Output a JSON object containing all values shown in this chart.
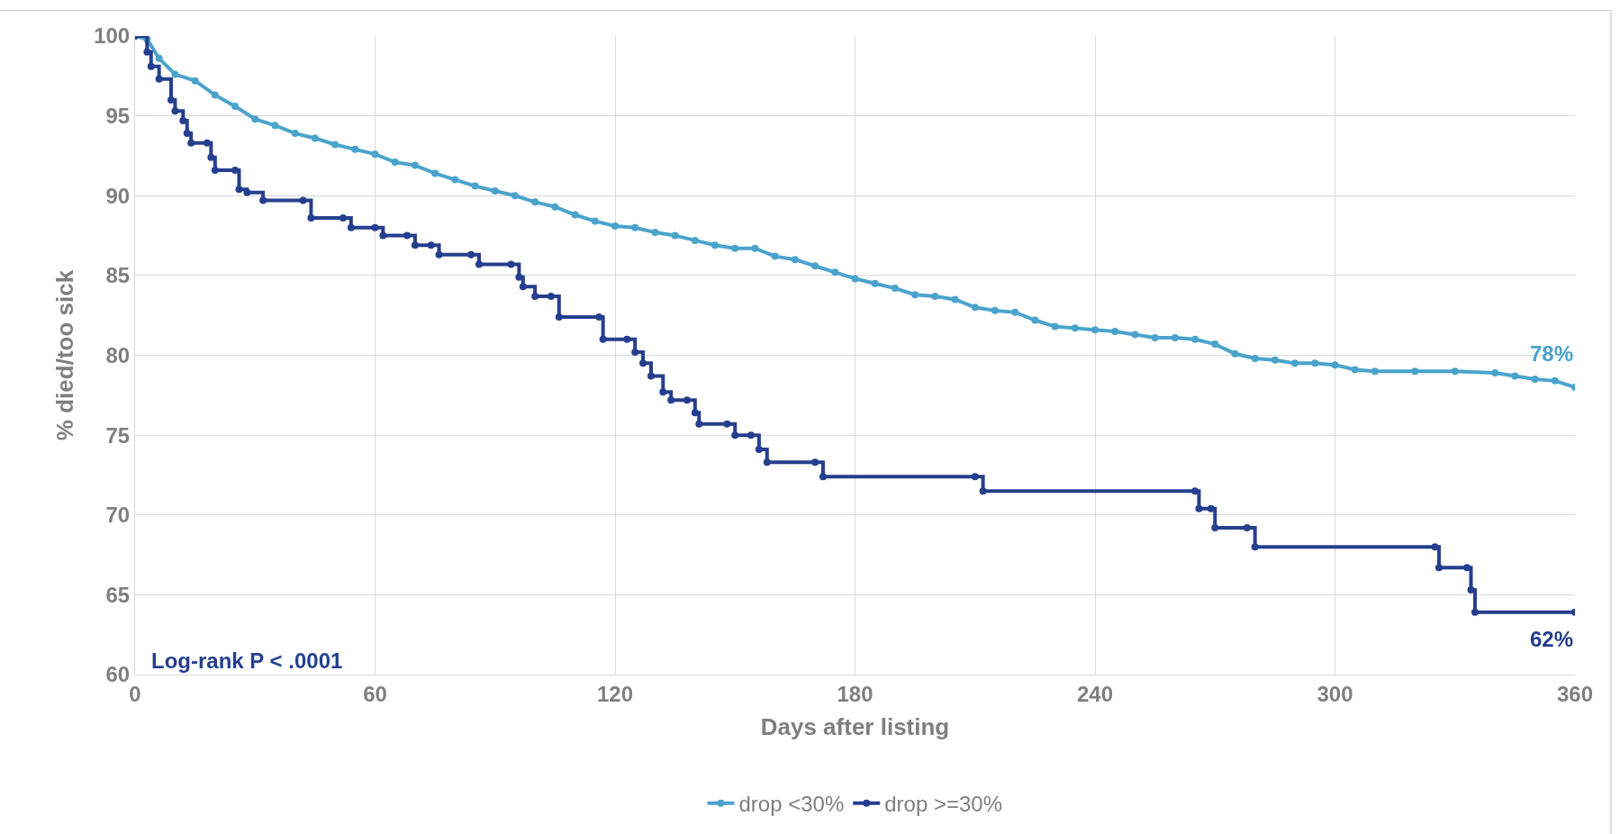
{
  "chart_data": {
    "type": "line",
    "xlabel": "Days after listing",
    "ylabel": "% died/too sick",
    "xlim": [
      0,
      360
    ],
    "xticks": [
      0,
      60,
      120,
      180,
      240,
      300,
      360
    ],
    "ylim": [
      60,
      100
    ],
    "yticks": [
      60,
      65,
      70,
      75,
      80,
      85,
      90,
      95,
      100
    ],
    "grid": true,
    "legend": "bottom",
    "marker": "circle",
    "line_style": "solid",
    "annotations": [
      {
        "text": "78%",
        "x": 360,
        "y": 78.0
      },
      {
        "text": "62%",
        "x": 360,
        "y": 63.9
      },
      "Log-rank P < .0001"
    ],
    "series": [
      {
        "name": "drop <30%",
        "color": "#4ba3cc",
        "x": [
          0,
          3,
          6,
          10,
          15,
          20,
          25,
          30,
          35,
          40,
          45,
          50,
          55,
          60,
          65,
          70,
          75,
          80,
          85,
          90,
          95,
          100,
          105,
          110,
          115,
          120,
          125,
          130,
          135,
          140,
          145,
          150,
          155,
          160,
          165,
          170,
          175,
          180,
          185,
          190,
          195,
          200,
          205,
          210,
          215,
          220,
          225,
          230,
          235,
          240,
          245,
          250,
          255,
          260,
          265,
          270,
          275,
          280,
          285,
          290,
          295,
          300,
          305,
          310,
          320,
          330,
          340,
          345,
          350,
          355,
          360
        ],
        "values": [
          100,
          99.8,
          98.6,
          97.6,
          97.2,
          96.3,
          95.6,
          94.8,
          94.4,
          93.9,
          93.6,
          93.2,
          92.9,
          92.6,
          92.1,
          91.9,
          91.4,
          91.0,
          90.6,
          90.3,
          90.0,
          89.6,
          89.3,
          88.8,
          88.4,
          88.1,
          88.0,
          87.7,
          87.5,
          87.2,
          86.9,
          86.7,
          86.7,
          86.2,
          86.0,
          85.6,
          85.2,
          84.8,
          84.5,
          84.2,
          83.8,
          83.7,
          83.5,
          83.0,
          82.8,
          82.7,
          82.2,
          81.8,
          81.7,
          81.6,
          81.5,
          81.3,
          81.1,
          81.1,
          81.0,
          80.7,
          80.1,
          79.8,
          79.7,
          79.5,
          79.5,
          79.4,
          79.1,
          79.0,
          79.0,
          79.0,
          78.9,
          78.7,
          78.5,
          78.4,
          78.0
        ]
      },
      {
        "name": "drop >=30%",
        "color": "#253f8e",
        "type": "step",
        "x": [
          0,
          3,
          4,
          6,
          9,
          10,
          12,
          13,
          14,
          18,
          19,
          20,
          25,
          26,
          28,
          32,
          42,
          44,
          52,
          54,
          60,
          62,
          68,
          70,
          74,
          76,
          84,
          86,
          94,
          96,
          97,
          100,
          104,
          106,
          116,
          117,
          123,
          125,
          127,
          129,
          132,
          134,
          138,
          140,
          141,
          148,
          150,
          154,
          156,
          158,
          170,
          172,
          210,
          212,
          265,
          266,
          269,
          270,
          278,
          280,
          325,
          326,
          333,
          334,
          335,
          360
        ],
        "values": [
          100,
          99,
          98.1,
          97.3,
          96,
          95.3,
          94.7,
          93.9,
          93.3,
          93.3,
          92.4,
          91.6,
          91.6,
          90.4,
          90.2,
          89.7,
          89.7,
          88.6,
          88.6,
          88,
          88,
          87.5,
          87.5,
          86.9,
          86.9,
          86.3,
          86.3,
          85.7,
          85.7,
          84.9,
          84.3,
          83.7,
          83.7,
          82.4,
          82.4,
          81.0,
          81.0,
          80.2,
          79.5,
          78.7,
          77.7,
          77.2,
          77.2,
          76.4,
          75.7,
          75.7,
          75.0,
          75.0,
          74.1,
          73.3,
          73.3,
          72.4,
          72.4,
          71.5,
          71.5,
          70.4,
          70.4,
          69.2,
          69.2,
          68,
          68,
          66.7,
          66.7,
          65.3,
          63.9,
          63.9
        ]
      }
    ]
  }
}
